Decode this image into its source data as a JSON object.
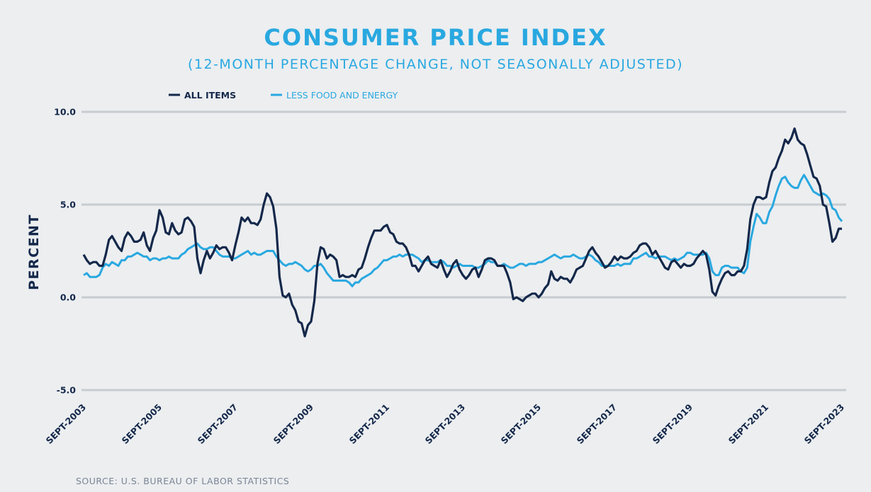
{
  "chart_data": {
    "type": "line",
    "title": "CONSUMER PRICE INDEX",
    "subtitle": "(12-MONTH PERCENTAGE CHANGE, NOT SEASONALLY ADJUSTED)",
    "ylabel": "PERCENT",
    "xlabel": "",
    "ylim": [
      -5,
      10
    ],
    "yticks": [
      "10.0",
      "5.0",
      "0.0",
      "-5.0"
    ],
    "ytick_values": [
      10,
      5,
      0,
      -5
    ],
    "x_start": "2003-09",
    "x_end": "2023-09",
    "xticks": [
      "SEPT-2003",
      "SEPT-2005",
      "SEPT-2007",
      "SEPT-2009",
      "SEPT-2011",
      "SEPT-2013",
      "SEPT-2015",
      "SEPT-2017",
      "SEPT-2019",
      "SEPT-2021",
      "SEPT-2023"
    ],
    "grid": "horizontal",
    "legend_position": "top-left",
    "source": "SOURCE: U.S. BUREAU OF LABOR STATISTICS",
    "colors": {
      "background": "#eceef0",
      "grid": "#c7ccd0",
      "all_items": "#14284a",
      "core": "#29a8e0"
    },
    "series": [
      {
        "name": "ALL ITEMS",
        "color": "#14284a",
        "values": [
          2.3,
          2.0,
          1.8,
          1.9,
          1.9,
          1.7,
          1.7,
          2.3,
          3.1,
          3.3,
          3.0,
          2.7,
          2.5,
          3.2,
          3.5,
          3.3,
          3.0,
          3.0,
          3.1,
          3.5,
          2.8,
          2.5,
          3.2,
          3.6,
          4.7,
          4.3,
          3.5,
          3.4,
          4.0,
          3.6,
          3.4,
          3.5,
          4.2,
          4.3,
          4.1,
          3.8,
          2.1,
          1.3,
          2.0,
          2.5,
          2.1,
          2.4,
          2.8,
          2.6,
          2.7,
          2.7,
          2.4,
          2.0,
          2.8,
          3.5,
          4.3,
          4.1,
          4.3,
          4.0,
          4.0,
          3.9,
          4.2,
          5.0,
          5.6,
          5.4,
          4.9,
          3.7,
          1.1,
          0.1,
          0.0,
          0.2,
          -0.4,
          -0.7,
          -1.3,
          -1.4,
          -2.1,
          -1.5,
          -1.3,
          -0.2,
          1.8,
          2.7,
          2.6,
          2.1,
          2.3,
          2.2,
          2.0,
          1.1,
          1.2,
          1.1,
          1.1,
          1.2,
          1.1,
          1.5,
          1.6,
          2.1,
          2.7,
          3.2,
          3.6,
          3.6,
          3.6,
          3.8,
          3.9,
          3.5,
          3.4,
          3.0,
          2.9,
          2.9,
          2.7,
          2.3,
          1.7,
          1.7,
          1.4,
          1.7,
          2.0,
          2.2,
          1.8,
          1.7,
          1.6,
          2.0,
          1.5,
          1.1,
          1.4,
          1.8,
          2.0,
          1.5,
          1.2,
          1.0,
          1.2,
          1.5,
          1.6,
          1.1,
          1.5,
          2.0,
          2.1,
          2.1,
          2.0,
          1.7,
          1.7,
          1.7,
          1.3,
          0.8,
          -0.1,
          0.0,
          -0.1,
          -0.2,
          0.0,
          0.1,
          0.2,
          0.2,
          0.0,
          0.2,
          0.5,
          0.7,
          1.4,
          1.0,
          0.9,
          1.1,
          1.0,
          1.0,
          0.8,
          1.1,
          1.5,
          1.6,
          1.7,
          2.1,
          2.5,
          2.7,
          2.4,
          2.2,
          1.9,
          1.6,
          1.7,
          1.9,
          2.2,
          2.0,
          2.2,
          2.1,
          2.1,
          2.2,
          2.4,
          2.5,
          2.8,
          2.9,
          2.9,
          2.7,
          2.3,
          2.5,
          2.2,
          1.9,
          1.6,
          1.5,
          1.9,
          2.0,
          1.8,
          1.6,
          1.8,
          1.7,
          1.7,
          1.8,
          2.1,
          2.3,
          2.5,
          2.3,
          1.5,
          0.3,
          0.1,
          0.6,
          1.0,
          1.3,
          1.4,
          1.2,
          1.2,
          1.4,
          1.4,
          1.7,
          2.6,
          4.2,
          5.0,
          5.4,
          5.4,
          5.3,
          5.4,
          6.2,
          6.8,
          7.0,
          7.5,
          7.9,
          8.5,
          8.3,
          8.6,
          9.1,
          8.5,
          8.3,
          8.2,
          7.7,
          7.1,
          6.5,
          6.4,
          6.0,
          5.0,
          4.9,
          4.0,
          3.0,
          3.2,
          3.7,
          3.7
        ]
      },
      {
        "name": "LESS FOOD AND ENERGY",
        "color": "#29a8e0",
        "values": [
          1.2,
          1.3,
          1.1,
          1.1,
          1.1,
          1.2,
          1.6,
          1.8,
          1.7,
          1.9,
          1.8,
          1.7,
          2.0,
          2.0,
          2.2,
          2.2,
          2.3,
          2.4,
          2.3,
          2.2,
          2.2,
          2.0,
          2.1,
          2.1,
          2.0,
          2.1,
          2.1,
          2.2,
          2.1,
          2.1,
          2.1,
          2.3,
          2.4,
          2.6,
          2.7,
          2.8,
          2.9,
          2.7,
          2.6,
          2.6,
          2.7,
          2.7,
          2.5,
          2.3,
          2.2,
          2.2,
          2.2,
          2.1,
          2.1,
          2.2,
          2.3,
          2.4,
          2.5,
          2.3,
          2.4,
          2.3,
          2.3,
          2.4,
          2.5,
          2.5,
          2.5,
          2.2,
          2.0,
          1.8,
          1.7,
          1.8,
          1.8,
          1.9,
          1.8,
          1.7,
          1.5,
          1.4,
          1.5,
          1.7,
          1.7,
          1.8,
          1.6,
          1.3,
          1.1,
          0.9,
          0.9,
          0.9,
          0.9,
          0.9,
          0.8,
          0.6,
          0.8,
          0.8,
          1.0,
          1.1,
          1.2,
          1.3,
          1.5,
          1.6,
          1.8,
          2.0,
          2.0,
          2.1,
          2.2,
          2.2,
          2.3,
          2.2,
          2.3,
          2.3,
          2.3,
          2.2,
          2.1,
          1.9,
          2.0,
          2.0,
          1.9,
          1.9,
          1.9,
          2.0,
          1.9,
          1.7,
          1.7,
          1.6,
          1.7,
          1.8,
          1.7,
          1.7,
          1.7,
          1.7,
          1.6,
          1.6,
          1.7,
          1.8,
          2.0,
          1.9,
          1.9,
          1.7,
          1.7,
          1.8,
          1.7,
          1.6,
          1.6,
          1.7,
          1.8,
          1.8,
          1.7,
          1.8,
          1.8,
          1.8,
          1.9,
          1.9,
          2.0,
          2.1,
          2.2,
          2.3,
          2.2,
          2.1,
          2.2,
          2.2,
          2.2,
          2.3,
          2.2,
          2.1,
          2.1,
          2.2,
          2.3,
          2.2,
          2.0,
          1.9,
          1.7,
          1.7,
          1.7,
          1.7,
          1.7,
          1.8,
          1.7,
          1.8,
          1.8,
          1.8,
          2.1,
          2.1,
          2.2,
          2.3,
          2.4,
          2.2,
          2.2,
          2.1,
          2.2,
          2.2,
          2.2,
          2.1,
          2.0,
          2.1,
          2.0,
          2.1,
          2.2,
          2.4,
          2.4,
          2.3,
          2.3,
          2.3,
          2.3,
          2.4,
          2.1,
          1.4,
          1.2,
          1.2,
          1.6,
          1.7,
          1.7,
          1.6,
          1.6,
          1.6,
          1.4,
          1.3,
          1.6,
          3.0,
          3.8,
          4.5,
          4.3,
          4.0,
          4.0,
          4.6,
          4.9,
          5.5,
          6.0,
          6.4,
          6.5,
          6.2,
          6.0,
          5.9,
          5.9,
          6.3,
          6.6,
          6.3,
          6.0,
          5.7,
          5.6,
          5.5,
          5.6,
          5.5,
          5.3,
          4.8,
          4.7,
          4.3,
          4.1
        ]
      }
    ]
  }
}
